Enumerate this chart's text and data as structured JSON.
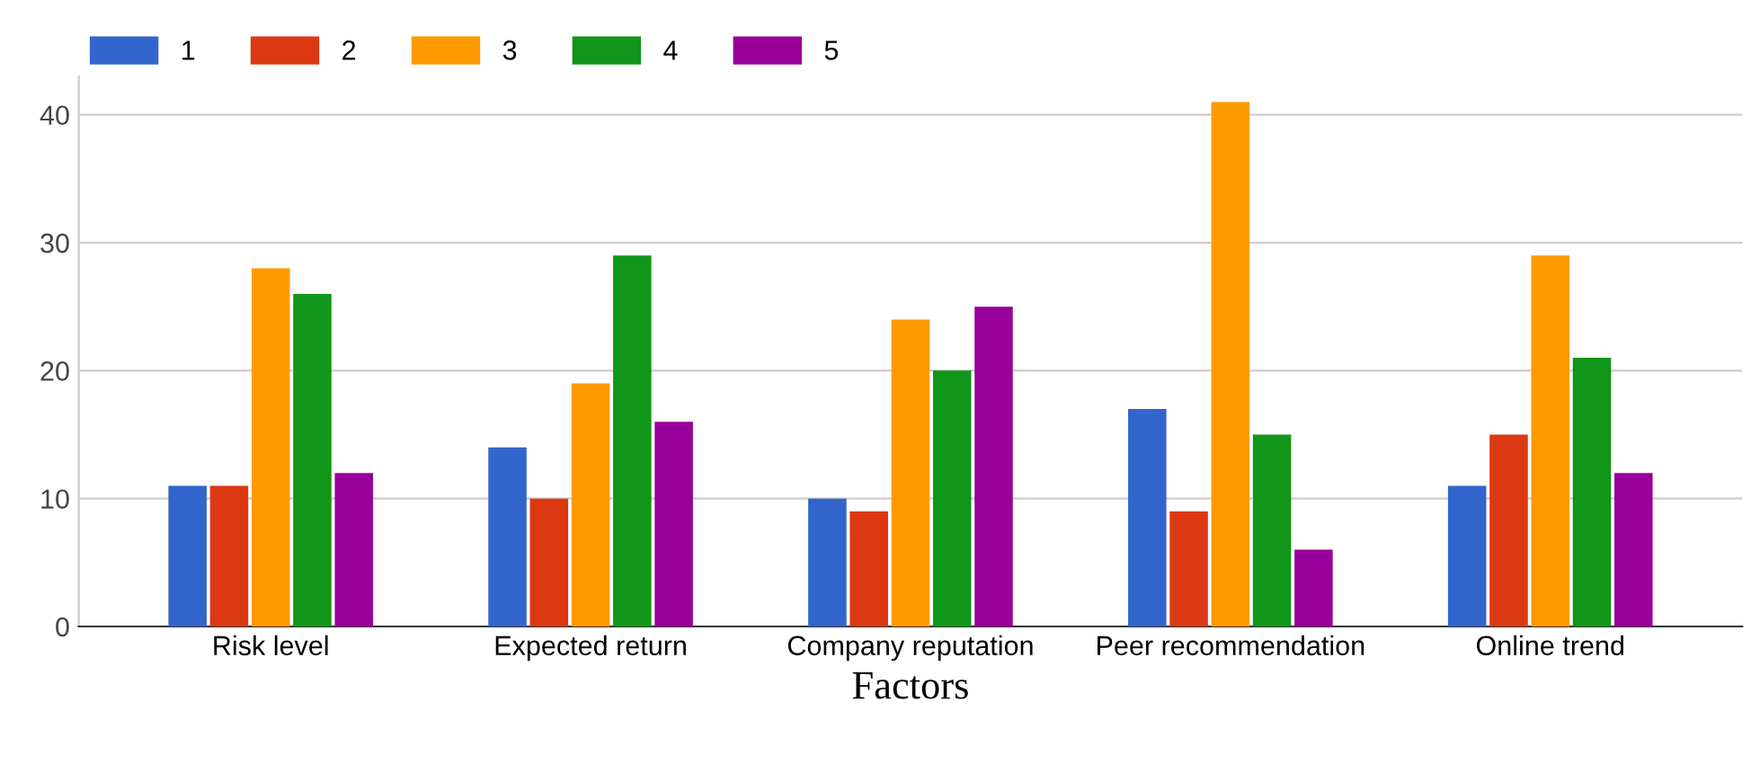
{
  "chart_data": {
    "type": "bar",
    "xlabel": "Factors",
    "categories": [
      "Risk level",
      "Expected return",
      "Company reputation",
      "Peer recommendation",
      "Online trend"
    ],
    "series": [
      {
        "name": "1",
        "color": "#3366cc",
        "values": [
          11,
          14,
          10,
          17,
          11
        ]
      },
      {
        "name": "2",
        "color": "#dc3912",
        "values": [
          11,
          10,
          9,
          9,
          15
        ]
      },
      {
        "name": "3",
        "color": "#ff9900",
        "values": [
          28,
          19,
          24,
          41,
          29
        ]
      },
      {
        "name": "4",
        "color": "#109618",
        "values": [
          26,
          29,
          20,
          15,
          21
        ]
      },
      {
        "name": "5",
        "color": "#990099",
        "values": [
          12,
          16,
          25,
          6,
          12
        ]
      }
    ],
    "ylim": [
      0,
      43
    ],
    "yticks": [
      0,
      10,
      20,
      30,
      40
    ],
    "grid": "y",
    "legend": "top left"
  }
}
